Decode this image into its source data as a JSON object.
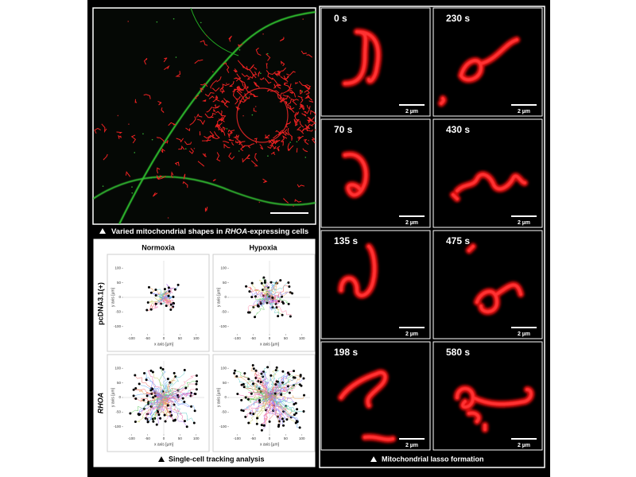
{
  "microscopy": {
    "caption": {
      "before": "Varied mitochondrial shapes in ",
      "italic": "RHOA",
      "after": "-expressing cells"
    }
  },
  "tracking": {
    "columns": [
      "Normoxia",
      "Hypoxia"
    ],
    "rows": [
      "pcDNA3.1(+)",
      "RHOA"
    ],
    "x_label": "x axis [µm]",
    "y_label": "y axis [µm]",
    "xticks": [
      -100,
      -50,
      0,
      50,
      100
    ],
    "yticks": [
      100,
      50,
      0,
      -50,
      -100
    ],
    "caption": "Single-cell tracking analysis"
  },
  "lasso": {
    "tiles": [
      "0 s",
      "230 s",
      "70 s",
      "430 s",
      "135 s",
      "475 s",
      "198 s",
      "580 s"
    ],
    "scale_bar": "2 µm",
    "caption": "Mitochondrial lasso formation"
  }
}
